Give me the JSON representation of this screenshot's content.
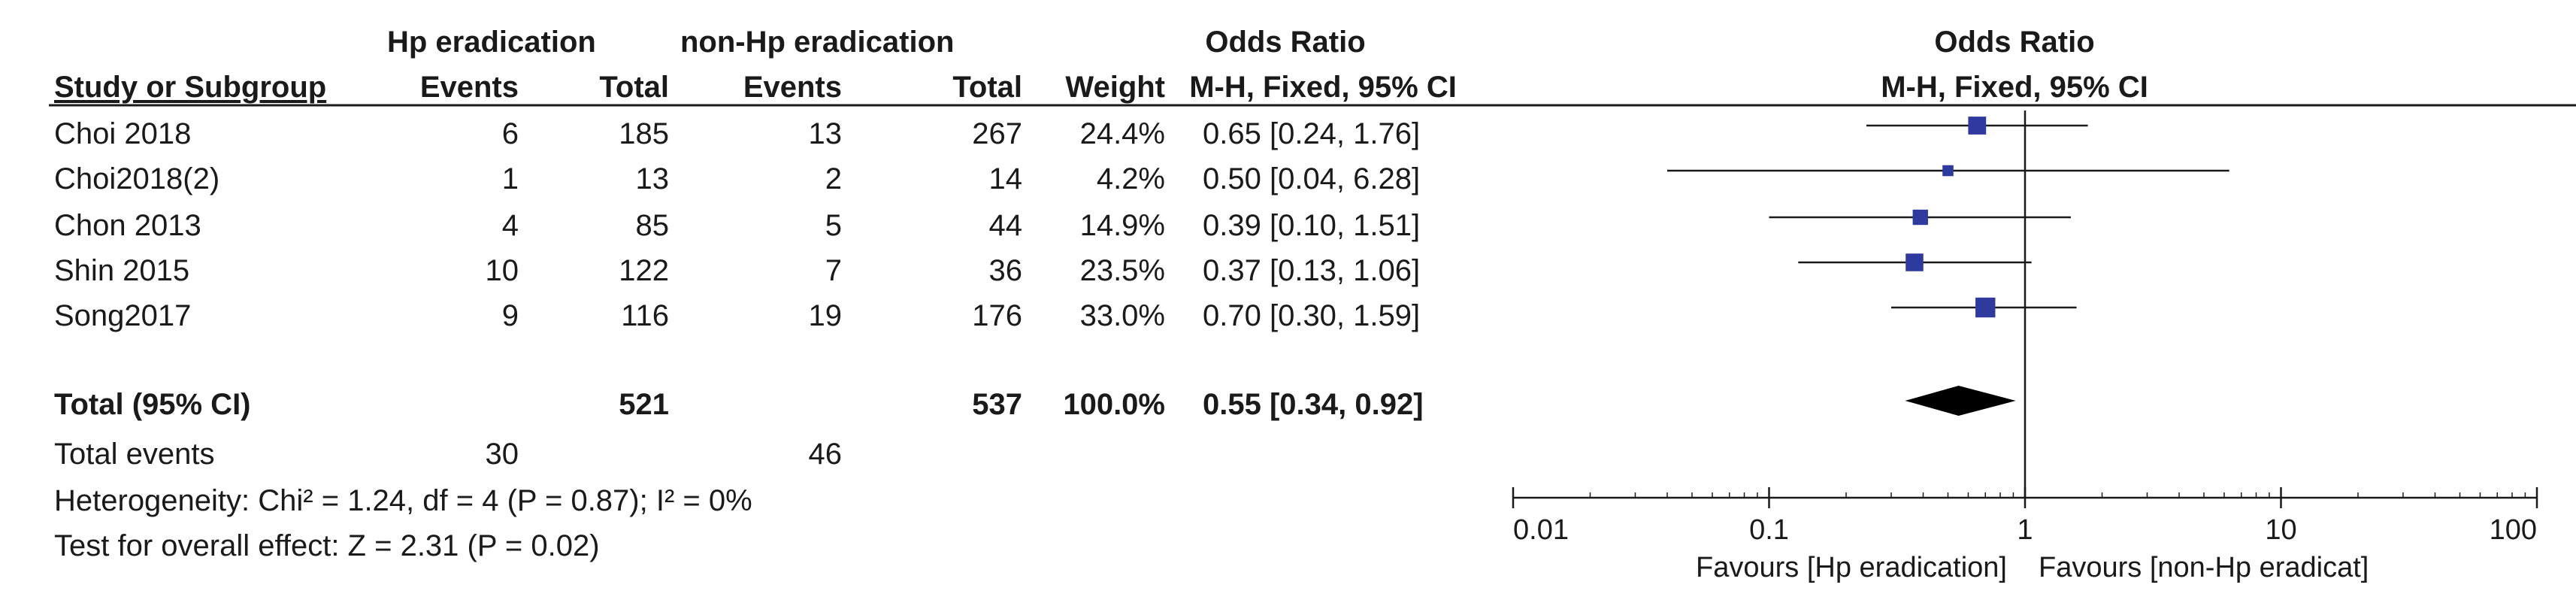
{
  "headers": {
    "group1": "Hp eradication",
    "group2": "non-Hp eradication",
    "or_title": "Odds Ratio",
    "or_method": "M-H, Fixed, 95% CI",
    "study": "Study or Subgroup",
    "g1_events": "Events",
    "g1_total": "Total",
    "g2_events": "Events",
    "g2_total": "Total",
    "weight": "Weight",
    "plot_title": "Odds Ratio",
    "plot_method": "M-H, Fixed, 95% CI"
  },
  "studies": [
    {
      "name": "Choi 2018",
      "e1": "6",
      "t1": "185",
      "e2": "13",
      "t2": "267",
      "weight": "24.4%",
      "ci": "0.65 [0.24, 1.76]"
    },
    {
      "name": "Choi2018(2)",
      "e1": "1",
      "t1": "13",
      "e2": "2",
      "t2": "14",
      "weight": "4.2%",
      "ci": "0.50 [0.04, 6.28]"
    },
    {
      "name": "Chon 2013",
      "e1": "4",
      "t1": "85",
      "e2": "5",
      "t2": "44",
      "weight": "14.9%",
      "ci": "0.39 [0.10, 1.51]"
    },
    {
      "name": "Shin 2015",
      "e1": "10",
      "t1": "122",
      "e2": "7",
      "t2": "36",
      "weight": "23.5%",
      "ci": "0.37 [0.13, 1.06]"
    },
    {
      "name": "Song2017",
      "e1": "9",
      "t1": "116",
      "e2": "19",
      "t2": "176",
      "weight": "33.0%",
      "ci": "0.70 [0.30, 1.59]"
    }
  ],
  "total": {
    "label": "Total (95% CI)",
    "t1": "521",
    "t2": "537",
    "weight": "100.0%",
    "ci": "0.55 [0.34, 0.92]"
  },
  "total_events": {
    "label": "Total events",
    "e1": "30",
    "e2": "46"
  },
  "heterogeneity": "Heterogeneity: Chi² = 1.24, df = 4 (P = 0.87); I² = 0%",
  "overall_effect": "Test for overall effect: Z = 2.31 (P = 0.02)",
  "axis_labels": {
    "left": "Favours [Hp eradication]",
    "right": "Favours [non-Hp eradicat]"
  },
  "colors": {
    "marker": "#2e3a9e",
    "line": "#1a1a1a",
    "diamond": "#000000"
  },
  "chart_data": {
    "type": "forest",
    "title": "Odds Ratio",
    "scale": "log",
    "xlim": [
      0.01,
      100
    ],
    "ticks": [
      0.01,
      0.1,
      1,
      10,
      100
    ],
    "tick_labels": [
      "0.01",
      "0.1",
      "1",
      "10",
      "100"
    ],
    "reference": 1,
    "series": [
      {
        "name": "Choi 2018",
        "or": 0.65,
        "lo": 0.24,
        "hi": 1.76,
        "weight": 24.4
      },
      {
        "name": "Choi2018(2)",
        "or": 0.5,
        "lo": 0.04,
        "hi": 6.28,
        "weight": 4.2
      },
      {
        "name": "Chon 2013",
        "or": 0.39,
        "lo": 0.1,
        "hi": 1.51,
        "weight": 14.9
      },
      {
        "name": "Shin 2015",
        "or": 0.37,
        "lo": 0.13,
        "hi": 1.06,
        "weight": 23.5
      },
      {
        "name": "Song2017",
        "or": 0.7,
        "lo": 0.3,
        "hi": 1.59,
        "weight": 33.0
      }
    ],
    "pooled": {
      "or": 0.55,
      "lo": 0.34,
      "hi": 0.92
    }
  }
}
